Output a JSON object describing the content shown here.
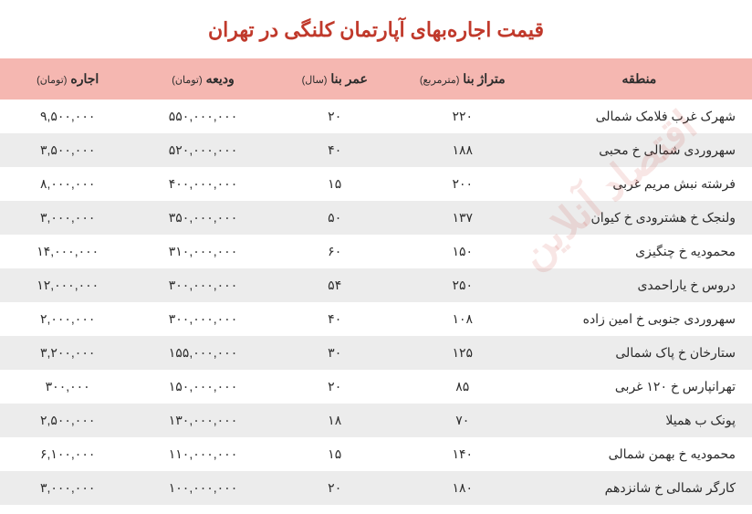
{
  "title": "قیمت اجاره‌بهای آپارتمان کلنگی در تهران",
  "watermark": "اقتصاد آنلاین",
  "colors": {
    "title_color": "#c0392b",
    "header_bg": "#f5b7b1",
    "row_odd_bg": "#ffffff",
    "row_even_bg": "#ececec",
    "text_color": "#2c2c2c",
    "watermark_color": "rgba(200,50,40,0.12)"
  },
  "table": {
    "columns": [
      {
        "label": "منطقه",
        "unit": ""
      },
      {
        "label": "متراژ بنا",
        "unit": "(مترمربع)"
      },
      {
        "label": "عمر بنا",
        "unit": "(سال)"
      },
      {
        "label": "ودیعه",
        "unit": "(تومان)"
      },
      {
        "label": "اجاره",
        "unit": "(تومان)"
      }
    ],
    "rows": [
      {
        "region": "شهرک غرب فلامک شمالی",
        "area": "۲۲۰",
        "age": "۲۰",
        "deposit": "۵۵۰,۰۰۰,۰۰۰",
        "rent": "۹,۵۰۰,۰۰۰"
      },
      {
        "region": "سهروردی شمالی خ محبی",
        "area": "۱۸۸",
        "age": "۴۰",
        "deposit": "۵۲۰,۰۰۰,۰۰۰",
        "rent": "۳,۵۰۰,۰۰۰"
      },
      {
        "region": "فرشته نبش مریم غربی",
        "area": "۲۰۰",
        "age": "۱۵",
        "deposit": "۴۰۰,۰۰۰,۰۰۰",
        "rent": "۸,۰۰۰,۰۰۰"
      },
      {
        "region": "ولنجک خ هشترودی خ کیوان",
        "area": "۱۳۷",
        "age": "۵۰",
        "deposit": "۳۵۰,۰۰۰,۰۰۰",
        "rent": "۳,۰۰۰,۰۰۰"
      },
      {
        "region": "محمودیه خ چنگیزی",
        "area": "۱۵۰",
        "age": "۶۰",
        "deposit": "۳۱۰,۰۰۰,۰۰۰",
        "rent": "۱۴,۰۰۰,۰۰۰"
      },
      {
        "region": "دروس خ یاراحمدی",
        "area": "۲۵۰",
        "age": "۵۴",
        "deposit": "۳۰۰,۰۰۰,۰۰۰",
        "rent": "۱۲,۰۰۰,۰۰۰"
      },
      {
        "region": "سهروردی جنوبی خ امین زاده",
        "area": "۱۰۸",
        "age": "۴۰",
        "deposit": "۳۰۰,۰۰۰,۰۰۰",
        "rent": "۲,۰۰۰,۰۰۰"
      },
      {
        "region": "ستارخان خ پاک شمالی",
        "area": "۱۲۵",
        "age": "۳۰",
        "deposit": "۱۵۵,۰۰۰,۰۰۰",
        "rent": "۳,۲۰۰,۰۰۰"
      },
      {
        "region": "تهرانپارس خ ۱۲۰ غربی",
        "area": "۸۵",
        "age": "۲۰",
        "deposit": "۱۵۰,۰۰۰,۰۰۰",
        "rent": "۳۰۰,۰۰۰"
      },
      {
        "region": "پونک ب همیلا",
        "area": "۷۰",
        "age": "۱۸",
        "deposit": "۱۳۰,۰۰۰,۰۰۰",
        "rent": "۲,۵۰۰,۰۰۰"
      },
      {
        "region": "محمودیه خ بهمن شمالی",
        "area": "۱۴۰",
        "age": "۱۵",
        "deposit": "۱۱۰,۰۰۰,۰۰۰",
        "rent": "۶,۱۰۰,۰۰۰"
      },
      {
        "region": "کارگر شمالی خ شانزدهم",
        "area": "۱۸۰",
        "age": "۲۰",
        "deposit": "۱۰۰,۰۰۰,۰۰۰",
        "rent": "۳,۰۰۰,۰۰۰"
      }
    ]
  }
}
